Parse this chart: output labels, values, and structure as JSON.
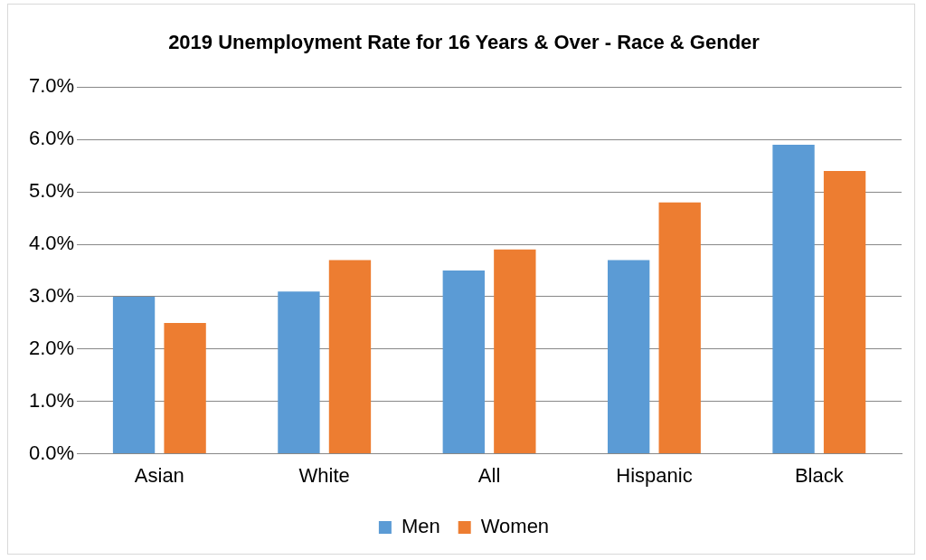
{
  "chart_data": {
    "type": "bar",
    "title": "2019 Unemployment Rate for 16 Years & Over - Race & Gender",
    "categories": [
      "Asian",
      "White",
      "All",
      "Hispanic",
      "Black"
    ],
    "series": [
      {
        "name": "Men",
        "color": "#5b9bd5",
        "values": [
          3.0,
          3.1,
          3.5,
          3.7,
          5.9
        ]
      },
      {
        "name": "Women",
        "color": "#ed7d31",
        "values": [
          2.5,
          3.7,
          3.9,
          4.8,
          5.4
        ]
      }
    ],
    "ylim": [
      0,
      7
    ],
    "yticks": [
      {
        "value": 0,
        "label": "0.0%"
      },
      {
        "value": 1,
        "label": "1.0%"
      },
      {
        "value": 2,
        "label": "2.0%"
      },
      {
        "value": 3,
        "label": "3.0%"
      },
      {
        "value": 4,
        "label": "4.0%"
      },
      {
        "value": 5,
        "label": "5.0%"
      },
      {
        "value": 6,
        "label": "6.0%"
      },
      {
        "value": 7,
        "label": "7.0%"
      }
    ],
    "grid": "y",
    "legend": "bottom"
  }
}
